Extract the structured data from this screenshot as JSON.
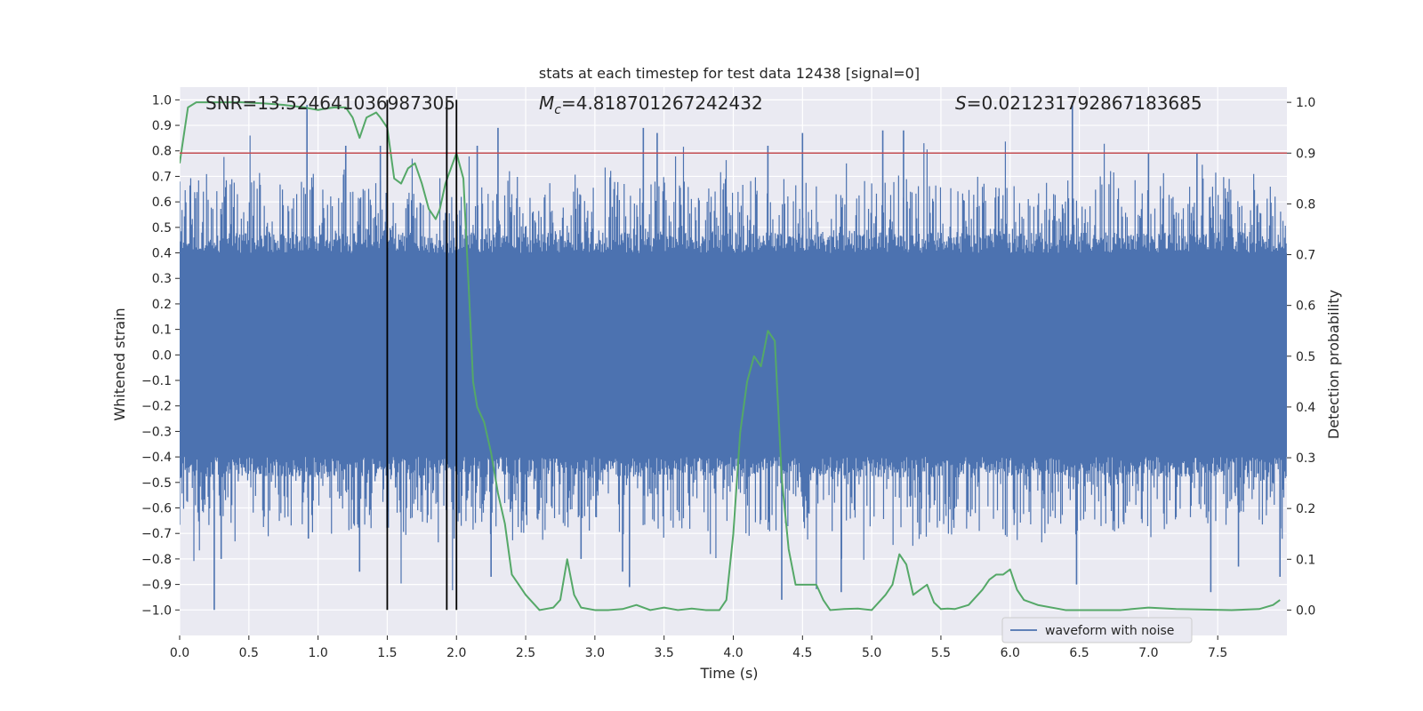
{
  "chart_data": {
    "type": "line",
    "title": "stats at each timestep for test data 12438 [signal=0]",
    "xlabel": "Time (s)",
    "ylabel_left": "Whitened strain",
    "ylabel_right": "Detection probability",
    "xlim": [
      0.0,
      8.0
    ],
    "ylim_left": [
      -1.1,
      1.05
    ],
    "ylim_right": [
      -0.05,
      1.03
    ],
    "xticks": [
      "0.0",
      "0.5",
      "1.0",
      "1.5",
      "2.0",
      "2.5",
      "3.0",
      "3.5",
      "4.0",
      "4.5",
      "5.0",
      "5.5",
      "6.0",
      "6.5",
      "7.0",
      "7.5"
    ],
    "yticks_left": [
      "1.0",
      "0.9",
      "0.8",
      "0.7",
      "0.6",
      "0.5",
      "0.4",
      "0.3",
      "0.2",
      "0.1",
      "0.0",
      "−0.1",
      "−0.2",
      "−0.3",
      "−0.4",
      "−0.5",
      "−0.6",
      "−0.7",
      "−0.8",
      "−0.9",
      "−1.0"
    ],
    "yticks_right": [
      "1.0",
      "0.9",
      "0.8",
      "0.7",
      "0.6",
      "0.5",
      "0.4",
      "0.3",
      "0.2",
      "0.1",
      "0.0"
    ],
    "grid": true,
    "legend": {
      "label": "waveform with noise",
      "placement": "lower-right"
    },
    "annotations": {
      "snr": "SNR=13.524641036987305",
      "mc_symbol": "M",
      "mc_sub": "c",
      "mc_value": "=4.818701267242432",
      "s_symbol": "S",
      "s_value": "=0.021231792867183685"
    },
    "threshold": {
      "value": 0.9,
      "axis": "right",
      "color": "#c44e52"
    },
    "vlines": [
      1.5,
      1.93,
      2.0
    ],
    "series": [
      {
        "name": "waveform with noise",
        "axis": "left",
        "color": "#4c72b0",
        "kind": "dense-noise",
        "core_amplitude": 0.4,
        "typical_peak": 0.65,
        "spikes": [
          [
            0.25,
            -1.0
          ],
          [
            0.3,
            -0.8
          ],
          [
            0.92,
            0.98
          ],
          [
            0.93,
            -0.72
          ],
          [
            1.2,
            0.82
          ],
          [
            1.3,
            -0.85
          ],
          [
            1.45,
            0.82
          ],
          [
            1.56,
            -0.52
          ],
          [
            2.15,
            0.82
          ],
          [
            2.25,
            -0.87
          ],
          [
            2.3,
            0.89
          ],
          [
            2.9,
            -0.8
          ],
          [
            3.2,
            -0.85
          ],
          [
            3.25,
            -0.91
          ],
          [
            3.35,
            0.89
          ],
          [
            3.45,
            0.87
          ],
          [
            4.25,
            0.82
          ],
          [
            4.35,
            -0.96
          ],
          [
            4.5,
            0.87
          ],
          [
            4.78,
            -0.93
          ],
          [
            5.08,
            0.88
          ],
          [
            5.23,
            0.88
          ],
          [
            6.45,
            0.99
          ],
          [
            6.48,
            -0.9
          ],
          [
            7.0,
            0.79
          ],
          [
            7.35,
            0.79
          ],
          [
            7.45,
            -0.93
          ],
          [
            7.65,
            -0.83
          ],
          [
            7.95,
            -0.87
          ]
        ]
      },
      {
        "name": "Detection probability",
        "axis": "right",
        "color": "#55a868",
        "x": [
          0.0,
          0.06,
          0.12,
          0.2,
          0.3,
          0.45,
          0.6,
          0.75,
          0.9,
          1.0,
          1.06,
          1.12,
          1.2,
          1.25,
          1.3,
          1.35,
          1.42,
          1.45,
          1.5,
          1.55,
          1.6,
          1.65,
          1.7,
          1.75,
          1.8,
          1.85,
          1.88,
          1.92,
          2.0,
          2.05,
          2.1,
          2.12,
          2.15,
          2.2,
          2.25,
          2.3,
          2.35,
          2.4,
          2.45,
          2.5,
          2.6,
          2.7,
          2.75,
          2.8,
          2.85,
          2.9,
          3.0,
          3.1,
          3.2,
          3.3,
          3.4,
          3.5,
          3.6,
          3.7,
          3.8,
          3.9,
          3.95,
          4.0,
          4.05,
          4.1,
          4.15,
          4.2,
          4.25,
          4.3,
          4.35,
          4.4,
          4.45,
          4.5,
          4.6,
          4.65,
          4.7,
          4.8,
          4.9,
          5.0,
          5.1,
          5.15,
          5.2,
          5.25,
          5.3,
          5.35,
          5.4,
          5.45,
          5.5,
          5.55,
          5.6,
          5.7,
          5.8,
          5.85,
          5.9,
          5.95,
          6.0,
          6.05,
          6.1,
          6.2,
          6.4,
          6.6,
          6.8,
          7.0,
          7.2,
          7.4,
          7.6,
          7.8,
          7.9,
          7.95
        ],
        "y": [
          0.88,
          0.99,
          1.0,
          1.0,
          1.0,
          1.0,
          0.998,
          0.995,
          0.99,
          0.985,
          0.988,
          0.99,
          0.99,
          0.97,
          0.93,
          0.97,
          0.98,
          0.97,
          0.95,
          0.85,
          0.84,
          0.87,
          0.88,
          0.84,
          0.79,
          0.77,
          0.79,
          0.84,
          0.9,
          0.85,
          0.57,
          0.45,
          0.4,
          0.37,
          0.31,
          0.23,
          0.17,
          0.07,
          0.05,
          0.03,
          0.0,
          0.005,
          0.02,
          0.1,
          0.03,
          0.005,
          0.0,
          0.0,
          0.002,
          0.01,
          0.0,
          0.005,
          0.0,
          0.003,
          0.0,
          0.0,
          0.02,
          0.15,
          0.35,
          0.45,
          0.5,
          0.48,
          0.55,
          0.53,
          0.26,
          0.12,
          0.05,
          0.05,
          0.05,
          0.02,
          0.0,
          0.002,
          0.003,
          0.0,
          0.03,
          0.05,
          0.11,
          0.09,
          0.03,
          0.04,
          0.05,
          0.015,
          0.002,
          0.003,
          0.002,
          0.01,
          0.04,
          0.06,
          0.07,
          0.07,
          0.08,
          0.04,
          0.02,
          0.01,
          0.0,
          0.0,
          0.0,
          0.005,
          0.002,
          0.001,
          0.0,
          0.002,
          0.01,
          0.02
        ]
      }
    ]
  }
}
